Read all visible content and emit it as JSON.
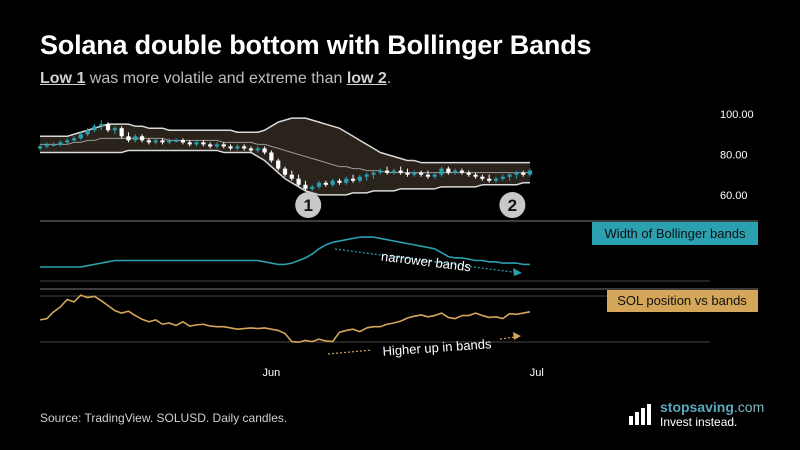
{
  "header": {
    "title": "Solana double bottom with Bollinger Bands",
    "subtitle_low1": "Low 1",
    "subtitle_mid": " was more volatile and extreme than ",
    "subtitle_low2": "low 2",
    "subtitle_end": "."
  },
  "footer": {
    "source": "Source: TradingView. SOLUSD. Daily candles.",
    "brand_name_a": "stopsaving",
    "brand_name_b": ".com",
    "brand_tag": "Invest instead."
  },
  "colors": {
    "up": "#2aa0b0",
    "down": "#ffffff",
    "band": "#d9d9d9",
    "band_fill": "#2a231c",
    "width_line": "#2aa0b0",
    "position_line": "#d4a65a",
    "marker": "#c8c8c8",
    "grid": "#444444"
  },
  "chart_data": [
    {
      "type": "candlestick",
      "title": "",
      "y_ticks": [
        "100.00",
        "80.00",
        "60.00"
      ],
      "ylim": [
        55,
        103
      ],
      "x_ticks": [
        "Jun",
        "Jul"
      ],
      "x_tick_index": [
        34,
        73
      ],
      "markers": [
        {
          "label": "1",
          "index": 40
        },
        {
          "label": "2",
          "index": 70
        }
      ],
      "candles": [
        {
          "o": 83,
          "h": 85,
          "l": 82,
          "c": 84
        },
        {
          "o": 84,
          "h": 86,
          "l": 83,
          "c": 85
        },
        {
          "o": 85,
          "h": 86,
          "l": 84,
          "c": 85
        },
        {
          "o": 85,
          "h": 87,
          "l": 84,
          "c": 86
        },
        {
          "o": 86,
          "h": 88,
          "l": 85,
          "c": 87
        },
        {
          "o": 87,
          "h": 89,
          "l": 86,
          "c": 88
        },
        {
          "o": 88,
          "h": 91,
          "l": 87,
          "c": 90
        },
        {
          "o": 90,
          "h": 93,
          "l": 89,
          "c": 92
        },
        {
          "o": 92,
          "h": 95,
          "l": 91,
          "c": 94
        },
        {
          "o": 94,
          "h": 97,
          "l": 92,
          "c": 95
        },
        {
          "o": 95,
          "h": 96,
          "l": 91,
          "c": 92
        },
        {
          "o": 92,
          "h": 94,
          "l": 90,
          "c": 93
        },
        {
          "o": 93,
          "h": 94,
          "l": 88,
          "c": 89
        },
        {
          "o": 89,
          "h": 91,
          "l": 86,
          "c": 87
        },
        {
          "o": 87,
          "h": 90,
          "l": 86,
          "c": 89
        },
        {
          "o": 89,
          "h": 90,
          "l": 86,
          "c": 87
        },
        {
          "o": 87,
          "h": 88,
          "l": 85,
          "c": 86
        },
        {
          "o": 86,
          "h": 88,
          "l": 85,
          "c": 87
        },
        {
          "o": 87,
          "h": 88,
          "l": 85,
          "c": 86
        },
        {
          "o": 86,
          "h": 88,
          "l": 85,
          "c": 87
        },
        {
          "o": 87,
          "h": 88,
          "l": 86,
          "c": 87
        },
        {
          "o": 87,
          "h": 88,
          "l": 85,
          "c": 86
        },
        {
          "o": 86,
          "h": 87,
          "l": 84,
          "c": 85
        },
        {
          "o": 85,
          "h": 87,
          "l": 84,
          "c": 86
        },
        {
          "o": 86,
          "h": 87,
          "l": 84,
          "c": 85
        },
        {
          "o": 85,
          "h": 86,
          "l": 83,
          "c": 84
        },
        {
          "o": 84,
          "h": 86,
          "l": 83,
          "c": 85
        },
        {
          "o": 85,
          "h": 86,
          "l": 83,
          "c": 84
        },
        {
          "o": 84,
          "h": 85,
          "l": 82,
          "c": 83
        },
        {
          "o": 83,
          "h": 85,
          "l": 82,
          "c": 84
        },
        {
          "o": 84,
          "h": 85,
          "l": 82,
          "c": 83
        },
        {
          "o": 83,
          "h": 84,
          "l": 81,
          "c": 82
        },
        {
          "o": 82,
          "h": 84,
          "l": 81,
          "c": 83
        },
        {
          "o": 83,
          "h": 84,
          "l": 80,
          "c": 81
        },
        {
          "o": 81,
          "h": 82,
          "l": 76,
          "c": 77
        },
        {
          "o": 77,
          "h": 78,
          "l": 72,
          "c": 73
        },
        {
          "o": 73,
          "h": 74,
          "l": 69,
          "c": 70
        },
        {
          "o": 70,
          "h": 72,
          "l": 67,
          "c": 68
        },
        {
          "o": 68,
          "h": 70,
          "l": 64,
          "c": 65
        },
        {
          "o": 65,
          "h": 67,
          "l": 62,
          "c": 63
        },
        {
          "o": 63,
          "h": 65,
          "l": 62,
          "c": 64
        },
        {
          "o": 64,
          "h": 67,
          "l": 63,
          "c": 66
        },
        {
          "o": 66,
          "h": 67,
          "l": 64,
          "c": 65
        },
        {
          "o": 65,
          "h": 68,
          "l": 64,
          "c": 67
        },
        {
          "o": 67,
          "h": 68,
          "l": 65,
          "c": 66
        },
        {
          "o": 66,
          "h": 69,
          "l": 65,
          "c": 68
        },
        {
          "o": 68,
          "h": 70,
          "l": 66,
          "c": 67
        },
        {
          "o": 67,
          "h": 70,
          "l": 66,
          "c": 69
        },
        {
          "o": 69,
          "h": 71,
          "l": 67,
          "c": 70
        },
        {
          "o": 70,
          "h": 72,
          "l": 68,
          "c": 71
        },
        {
          "o": 71,
          "h": 73,
          "l": 70,
          "c": 72
        },
        {
          "o": 72,
          "h": 74,
          "l": 70,
          "c": 71
        },
        {
          "o": 71,
          "h": 73,
          "l": 70,
          "c": 72
        },
        {
          "o": 72,
          "h": 74,
          "l": 70,
          "c": 71
        },
        {
          "o": 71,
          "h": 73,
          "l": 69,
          "c": 70
        },
        {
          "o": 70,
          "h": 72,
          "l": 69,
          "c": 71
        },
        {
          "o": 71,
          "h": 72,
          "l": 69,
          "c": 70
        },
        {
          "o": 70,
          "h": 72,
          "l": 68,
          "c": 69
        },
        {
          "o": 69,
          "h": 71,
          "l": 68,
          "c": 70
        },
        {
          "o": 70,
          "h": 74,
          "l": 69,
          "c": 73
        },
        {
          "o": 73,
          "h": 74,
          "l": 70,
          "c": 71
        },
        {
          "o": 71,
          "h": 73,
          "l": 70,
          "c": 72
        },
        {
          "o": 72,
          "h": 73,
          "l": 70,
          "c": 71
        },
        {
          "o": 71,
          "h": 72,
          "l": 69,
          "c": 70
        },
        {
          "o": 70,
          "h": 71,
          "l": 68,
          "c": 69
        },
        {
          "o": 69,
          "h": 70,
          "l": 67,
          "c": 68
        },
        {
          "o": 68,
          "h": 70,
          "l": 66,
          "c": 67
        },
        {
          "o": 67,
          "h": 69,
          "l": 66,
          "c": 68
        },
        {
          "o": 68,
          "h": 70,
          "l": 67,
          "c": 69
        },
        {
          "o": 69,
          "h": 71,
          "l": 67,
          "c": 70
        },
        {
          "o": 70,
          "h": 72,
          "l": 68,
          "c": 71
        },
        {
          "o": 71,
          "h": 72,
          "l": 69,
          "c": 70
        },
        {
          "o": 70,
          "h": 73,
          "l": 69,
          "c": 72
        }
      ],
      "bands": {
        "upper": [
          89,
          89,
          89,
          89,
          89,
          90,
          91,
          92,
          93,
          94,
          95,
          95,
          95,
          95,
          94,
          94,
          93,
          93,
          93,
          92,
          92,
          92,
          92,
          92,
          92,
          92,
          92,
          92,
          92,
          91,
          91,
          91,
          91,
          92,
          94,
          96,
          97,
          98,
          98,
          98,
          97,
          96,
          95,
          94,
          93,
          91,
          89,
          87,
          85,
          83,
          81,
          80,
          79,
          78,
          77,
          77,
          76,
          76,
          76,
          76,
          76,
          76,
          76,
          76,
          76,
          76,
          76,
          76,
          76,
          76,
          76,
          76,
          76
        ],
        "middle": [
          85,
          85,
          85,
          85,
          85,
          86,
          86,
          87,
          87,
          88,
          88,
          88,
          88,
          88,
          88,
          88,
          88,
          88,
          88,
          87,
          87,
          87,
          87,
          87,
          87,
          87,
          87,
          86,
          86,
          86,
          86,
          86,
          85,
          85,
          84,
          83,
          82,
          81,
          80,
          79,
          78,
          77,
          76,
          75,
          74,
          74,
          73,
          73,
          72,
          72,
          72,
          71,
          71,
          71,
          71,
          71,
          71,
          71,
          71,
          71,
          71,
          71,
          71,
          71,
          71,
          71,
          71,
          71,
          71,
          71,
          71,
          71,
          71
        ],
        "lower": [
          81,
          81,
          81,
          81,
          81,
          81,
          81,
          81,
          81,
          81,
          81,
          81,
          81,
          82,
          82,
          82,
          82,
          82,
          82,
          82,
          82,
          82,
          82,
          82,
          82,
          82,
          82,
          81,
          81,
          81,
          81,
          81,
          79,
          77,
          74,
          71,
          68,
          66,
          64,
          62,
          61,
          60,
          60,
          60,
          60,
          60,
          61,
          61,
          61,
          62,
          62,
          62,
          62,
          63,
          63,
          63,
          63,
          63,
          63,
          64,
          64,
          64,
          64,
          64,
          64,
          65,
          65,
          65,
          65,
          65,
          65,
          66,
          66
        ]
      }
    },
    {
      "type": "line",
      "label": "Width of Bollinger bands",
      "annotation": "narrower bands",
      "values": [
        10,
        10,
        10,
        10,
        10,
        10,
        10,
        11,
        12,
        13,
        14,
        15,
        15,
        15,
        15,
        15,
        15,
        15,
        15,
        15,
        15,
        15,
        15,
        15,
        15,
        15,
        15,
        15,
        15,
        15,
        15,
        15,
        15,
        14,
        13,
        12,
        12,
        13,
        15,
        17,
        20,
        24,
        27,
        29,
        30,
        31,
        32,
        33,
        33,
        33,
        32,
        31,
        30,
        29,
        28,
        27,
        26,
        25,
        24,
        21,
        18,
        17,
        17,
        16,
        15,
        15,
        14,
        14,
        13,
        13,
        13,
        12,
        12
      ],
      "ylim": [
        0,
        40
      ]
    },
    {
      "type": "line",
      "label": "SOL position vs bands",
      "annotation": "Higher up in bands",
      "values": [
        55,
        57,
        68,
        76,
        88,
        84,
        95,
        91,
        93,
        86,
        78,
        70,
        66,
        69,
        62,
        56,
        52,
        55,
        48,
        50,
        46,
        52,
        45,
        47,
        48,
        45,
        44,
        44,
        42,
        40,
        41,
        42,
        41,
        42,
        40,
        38,
        33,
        20,
        19,
        22,
        20,
        24,
        21,
        20,
        35,
        38,
        40,
        36,
        42,
        44,
        44,
        48,
        50,
        53,
        58,
        61,
        63,
        60,
        62,
        66,
        59,
        57,
        62,
        62,
        66,
        62,
        59,
        60,
        57,
        65,
        64,
        66,
        68
      ],
      "ylim": [
        0,
        100
      ]
    }
  ]
}
